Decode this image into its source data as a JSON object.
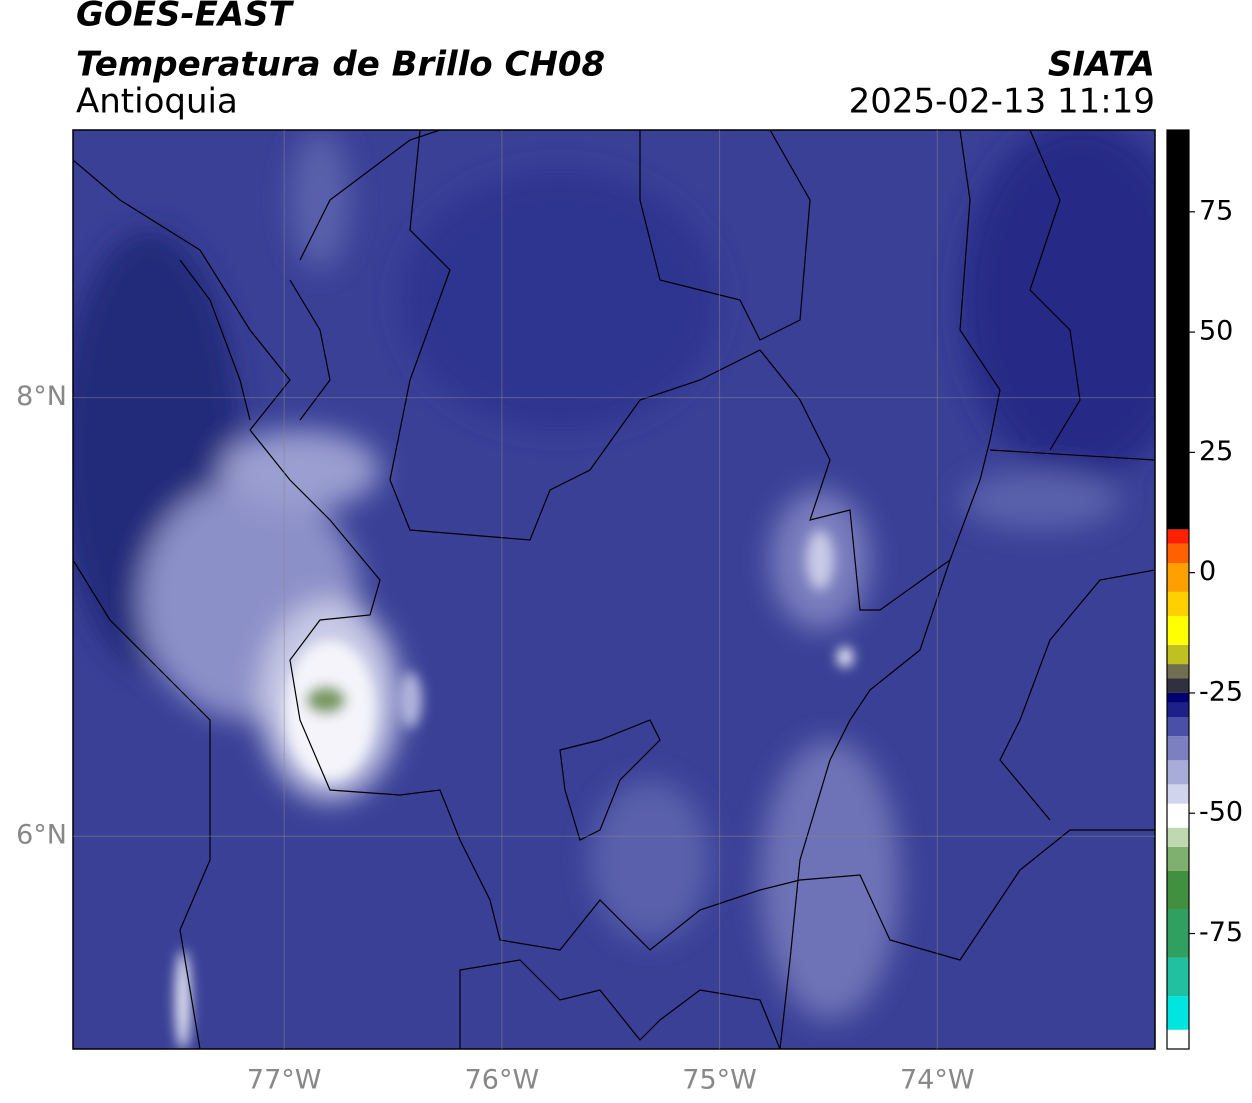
{
  "header": {
    "title": "GOES-EAST",
    "subtitle": "Temperatura de Brillo CH08",
    "region": "Antioquia",
    "source": "SIATA",
    "datetime": "2025-02-13 11:19"
  },
  "map": {
    "xlim": [
      -77.97,
      -73.0
    ],
    "ylim": [
      5.03,
      9.22
    ],
    "xticks": [
      {
        "value": -77,
        "label": "77°W"
      },
      {
        "value": -76,
        "label": "76°W"
      },
      {
        "value": -75,
        "label": "75°W"
      },
      {
        "value": -74,
        "label": "74°W"
      }
    ],
    "yticks": [
      {
        "value": 8,
        "label": "8°N"
      },
      {
        "value": 6,
        "label": "6°N"
      }
    ],
    "grid": true
  },
  "colorbar": {
    "lim": [
      -99,
      92
    ],
    "ticks": [
      75,
      50,
      25,
      0,
      -25,
      -50,
      -75
    ],
    "colors": [
      [
        -99,
        "#ffffff"
      ],
      [
        -95,
        "#00e5e0"
      ],
      [
        -88,
        "#20c0a0"
      ],
      [
        -80,
        "#30a060"
      ],
      [
        -70,
        "#409040"
      ],
      [
        -62,
        "#80b070"
      ],
      [
        -57,
        "#c0d8b0"
      ],
      [
        -53,
        "#ffffff"
      ],
      [
        -48,
        "#d0d4ec"
      ],
      [
        -44,
        "#a8acd8"
      ],
      [
        -39,
        "#7c80c0"
      ],
      [
        -34,
        "#4a50a8"
      ],
      [
        -30,
        "#1c2088"
      ],
      [
        -27,
        "#000070"
      ],
      [
        -25,
        "#303040"
      ],
      [
        -22,
        "#707050"
      ],
      [
        -19,
        "#c0c020"
      ],
      [
        -15,
        "#ffff00"
      ],
      [
        -9,
        "#ffd000"
      ],
      [
        -4,
        "#ffa000"
      ],
      [
        2,
        "#ff6000"
      ],
      [
        6,
        "#ff2000"
      ],
      [
        9,
        "#000000"
      ]
    ]
  }
}
